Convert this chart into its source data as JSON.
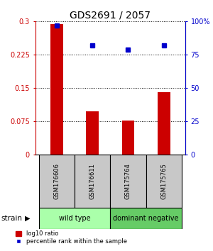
{
  "title": "GDS2691 / 2057",
  "samples": [
    "GSM176606",
    "GSM176611",
    "GSM175764",
    "GSM175765"
  ],
  "bar_values": [
    0.293,
    0.097,
    0.077,
    0.14
  ],
  "percentile_values": [
    97,
    82,
    79,
    82
  ],
  "bar_color": "#cc0000",
  "point_color": "#0000cc",
  "ylim_left": [
    0,
    0.3
  ],
  "ylim_right": [
    0,
    100
  ],
  "yticks_left": [
    0,
    0.075,
    0.15,
    0.225,
    0.3
  ],
  "yticks_right": [
    0,
    25,
    50,
    75,
    100
  ],
  "ytick_labels_left": [
    "0",
    "0.075",
    "0.15",
    "0.225",
    "0.3"
  ],
  "ytick_labels_right": [
    "0",
    "25",
    "50",
    "75",
    "100%"
  ],
  "groups": [
    {
      "label": "wild type",
      "indices": [
        0,
        1
      ],
      "color": "#aaffaa"
    },
    {
      "label": "dominant negative",
      "indices": [
        2,
        3
      ],
      "color": "#66cc66"
    }
  ],
  "group_label": "strain",
  "legend_bar_label": "log10 ratio",
  "legend_point_label": "percentile rank within the sample",
  "bg_color": "#ffffff",
  "sample_box_color": "#c8c8c8",
  "title_fontsize": 10
}
